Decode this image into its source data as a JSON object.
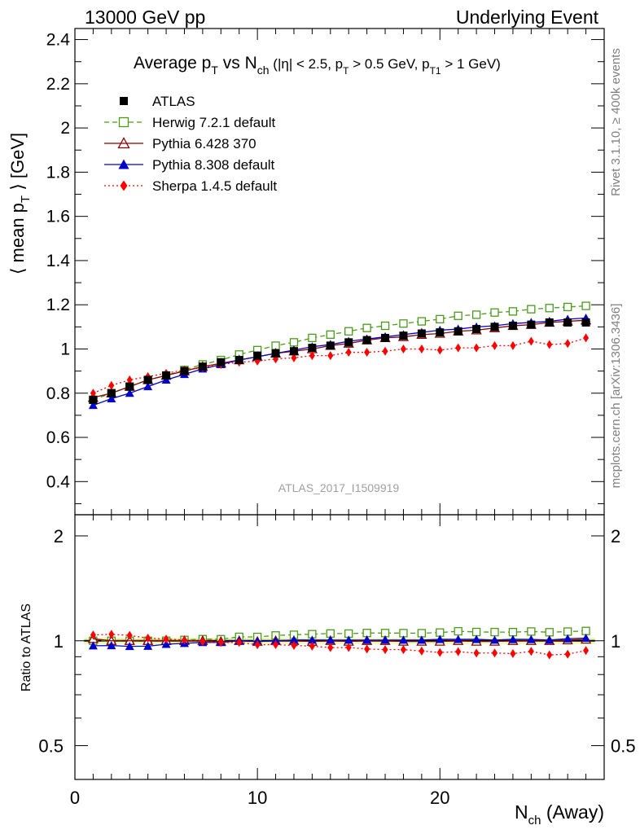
{
  "header": {
    "left": "13000 GeV pp",
    "right": "Underlying Event"
  },
  "side": {
    "rivet": "Rivet 3.1.10, ≥ 400k events",
    "mcplots": "mcplots.cern.ch [arXiv:1306.3436]"
  },
  "chart_data": {
    "type": "line",
    "title": "Average pT vs Nch (|η| < 2.5, pT > 0.5 GeV, pT1 > 1 GeV)",
    "title_parts": {
      "a": "Average p",
      "a_sub": "T",
      "b": " vs N",
      "b_sub": "ch",
      "c": " (|η| < 2.5, p",
      "c_sub": "T",
      "d": " > 0.5 GeV, p",
      "d_sub": "T1",
      "e": " > 1 GeV)"
    },
    "ylabel": "⟨ mean pT ⟩ [GeV]",
    "ylabel_parts": {
      "a": "⟨ mean p",
      "a_sub": "T",
      "b": " ⟩ [GeV]"
    },
    "xlabel": "Nch (Away)",
    "xlabel_parts": {
      "a": "N",
      "a_sub": "ch",
      "b": " (Away)"
    },
    "ratio_ylabel": "Ratio to ATLAS",
    "watermark": "ATLAS_2017_I1509919",
    "xlim": [
      0,
      29
    ],
    "ylim": [
      0.25,
      2.45
    ],
    "ratio_ylim": [
      0.4,
      2.3
    ],
    "ratio_log": true,
    "x_ticks": [
      0,
      10,
      20
    ],
    "y_ticks": [
      0.4,
      0.6,
      0.8,
      1,
      1.2,
      1.4,
      1.6,
      1.8,
      2,
      2.2,
      2.4
    ],
    "ratio_ticks": [
      0.5,
      1,
      2
    ],
    "legend_position": "top-left",
    "x": [
      1,
      2,
      3,
      4,
      5,
      6,
      7,
      8,
      9,
      10,
      11,
      12,
      13,
      14,
      15,
      16,
      17,
      18,
      19,
      20,
      21,
      22,
      23,
      24,
      25,
      26,
      27,
      28
    ],
    "series": [
      {
        "name": "ATLAS",
        "color": "#000000",
        "marker": "square-filled",
        "values": [
          0.77,
          0.8,
          0.83,
          0.86,
          0.88,
          0.9,
          0.92,
          0.94,
          0.95,
          0.97,
          0.98,
          0.99,
          1.005,
          1.015,
          1.03,
          1.04,
          1.05,
          1.06,
          1.07,
          1.075,
          1.08,
          1.09,
          1.1,
          1.105,
          1.11,
          1.12,
          1.12,
          1.12
        ]
      },
      {
        "name": "Herwig 7.2.1 default",
        "color": "#4a9a1a",
        "marker": "square-open",
        "dash": "dashed",
        "values": [
          0.77,
          0.8,
          0.83,
          0.86,
          0.88,
          0.905,
          0.93,
          0.95,
          0.975,
          0.995,
          1.015,
          1.03,
          1.05,
          1.065,
          1.08,
          1.095,
          1.105,
          1.115,
          1.125,
          1.135,
          1.15,
          1.155,
          1.165,
          1.17,
          1.18,
          1.185,
          1.19,
          1.195
        ]
      },
      {
        "name": "Pythia 6.428 370",
        "color": "#8b0000",
        "marker": "triangle-open",
        "dash": "solid",
        "values": [
          0.78,
          0.8,
          0.83,
          0.86,
          0.88,
          0.9,
          0.92,
          0.935,
          0.95,
          0.965,
          0.98,
          0.99,
          1.0,
          1.015,
          1.025,
          1.04,
          1.05,
          1.055,
          1.065,
          1.07,
          1.08,
          1.085,
          1.095,
          1.105,
          1.11,
          1.12,
          1.125,
          1.13
        ]
      },
      {
        "name": "Pythia 8.308 default",
        "color": "#0000cc",
        "marker": "triangle-filled",
        "dash": "solid",
        "values": [
          0.745,
          0.775,
          0.8,
          0.83,
          0.86,
          0.885,
          0.91,
          0.93,
          0.95,
          0.965,
          0.98,
          0.995,
          1.01,
          1.02,
          1.035,
          1.045,
          1.055,
          1.065,
          1.075,
          1.085,
          1.09,
          1.1,
          1.105,
          1.115,
          1.12,
          1.125,
          1.135,
          1.14
        ]
      },
      {
        "name": "Sherpa 1.4.5 default",
        "color": "#ff0000",
        "marker": "diamond-filled",
        "dash": "dotted",
        "values": [
          0.8,
          0.835,
          0.86,
          0.875,
          0.89,
          0.905,
          0.915,
          0.93,
          0.94,
          0.945,
          0.955,
          0.96,
          0.97,
          0.97,
          0.985,
          0.985,
          0.99,
          1.0,
          1.0,
          0.995,
          1.005,
          1.005,
          1.015,
          1.015,
          1.035,
          1.02,
          1.025,
          1.05
        ]
      }
    ]
  }
}
